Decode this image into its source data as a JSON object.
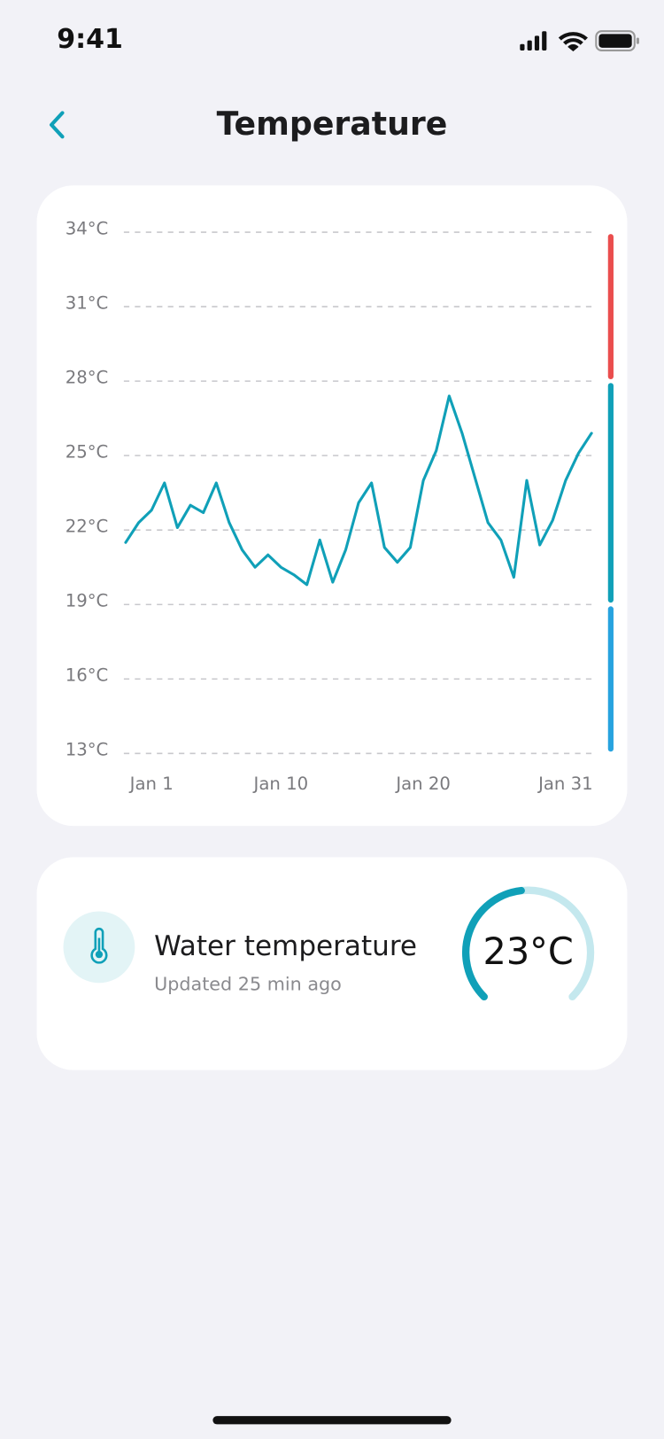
{
  "status_bar": {
    "time": "9:41"
  },
  "header": {
    "title": "Temperature"
  },
  "chart_data": {
    "type": "line",
    "categories": [
      null,
      null,
      "Jan 1",
      null,
      null,
      null,
      null,
      null,
      null,
      null,
      null,
      null,
      "Jan 10",
      null,
      null,
      null,
      null,
      null,
      null,
      null,
      null,
      null,
      null,
      "Jan 20",
      null,
      null,
      null,
      null,
      null,
      null,
      null,
      null,
      null,
      null,
      "Jan 31",
      null,
      null
    ],
    "values": [
      21.5,
      22.3,
      22.8,
      23.9,
      22.1,
      23.0,
      22.7,
      23.9,
      22.3,
      21.2,
      20.5,
      21.0,
      20.5,
      20.2,
      19.8,
      21.6,
      19.9,
      21.2,
      23.1,
      23.9,
      21.3,
      20.7,
      21.3,
      24.0,
      25.2,
      27.4,
      25.9,
      24.1,
      22.3,
      21.6,
      20.1,
      24.0,
      21.4,
      22.4,
      24.0,
      25.1,
      25.9
    ],
    "color": "#10a0b8",
    "ylim": [
      13,
      34
    ],
    "yticks": [
      {
        "value": 34,
        "label": "34°C"
      },
      {
        "value": 31,
        "label": "31°C"
      },
      {
        "value": 28,
        "label": "28°C"
      },
      {
        "value": 25,
        "label": "25°C"
      },
      {
        "value": 22,
        "label": "22°C"
      },
      {
        "value": 19,
        "label": "19°C"
      },
      {
        "value": 16,
        "label": "16°C"
      },
      {
        "value": 13,
        "label": "13°C"
      }
    ],
    "grid": true,
    "ranges": [
      {
        "from": 28,
        "to": 34,
        "color": "#ea4d4d"
      },
      {
        "from": 19,
        "to": 28,
        "color": "#10a0b8"
      },
      {
        "from": 13,
        "to": 19,
        "color": "#27a3df"
      }
    ]
  },
  "card": {
    "title": "Water temperature",
    "subtitle": "Updated 25 min ago",
    "gauge": {
      "value": 23,
      "label": "23°C",
      "color": "#10a0b8",
      "track_color": "#c4e8ee"
    }
  }
}
